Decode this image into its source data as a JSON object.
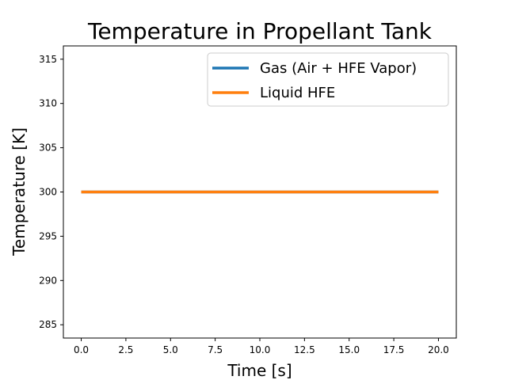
{
  "chart_data": {
    "type": "line",
    "title": "Temperature in Propellant Tank",
    "xlabel": "Time [s]",
    "ylabel": "Temperature [K]",
    "xlim": [
      -1.0,
      21.0
    ],
    "ylim": [
      283.5,
      316.5
    ],
    "xticks": [
      0.0,
      2.5,
      5.0,
      7.5,
      10.0,
      12.5,
      15.0,
      17.5,
      20.0
    ],
    "xtick_labels": [
      "0.0",
      "2.5",
      "5.0",
      "7.5",
      "10.0",
      "12.5",
      "15.0",
      "17.5",
      "20.0"
    ],
    "yticks": [
      285,
      290,
      295,
      300,
      305,
      310,
      315
    ],
    "ytick_labels": [
      "285",
      "290",
      "295",
      "300",
      "305",
      "310",
      "315"
    ],
    "grid": false,
    "legend_position": "upper-right",
    "series": [
      {
        "name": "Gas (Air + HFE Vapor)",
        "color": "#1f77b4",
        "x": [
          0,
          20
        ],
        "y": [
          300,
          300
        ]
      },
      {
        "name": "Liquid HFE",
        "color": "#ff7f0e",
        "x": [
          0,
          20
        ],
        "y": [
          300,
          300
        ]
      }
    ]
  }
}
